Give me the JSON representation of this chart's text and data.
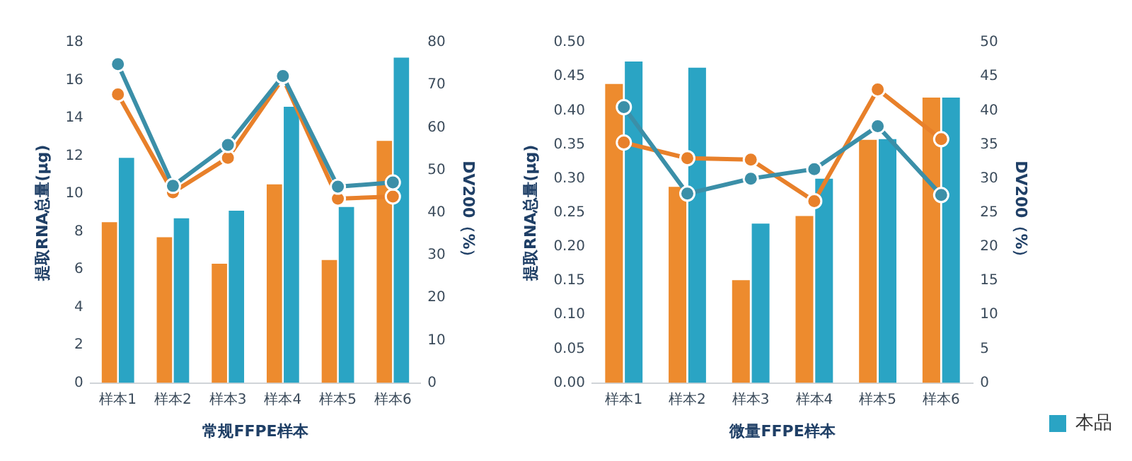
{
  "chart_data": [
    {
      "type": "bar",
      "xlabel": "常规FFPE样本",
      "ylabel": "提取RNA总量(μg)",
      "y2label": "DV200（%）",
      "categories": [
        "样本1",
        "样本2",
        "样本3",
        "样本4",
        "样本5",
        "样本6"
      ],
      "series": [
        {
          "color": "#ed8b2e",
          "values": [
            8.5,
            7.7,
            6.3,
            10.5,
            6.5,
            12.8
          ]
        },
        {
          "color": "#2aa4c4",
          "values": [
            11.9,
            8.7,
            9.1,
            14.6,
            9.3,
            17.2
          ]
        },
        {
          "type": "line",
          "axis": "y2",
          "color": "#e8802a",
          "values": [
            67.8,
            44.8,
            52.9,
            71.6,
            43.3,
            43.8
          ]
        },
        {
          "type": "line",
          "axis": "y2",
          "color": "#3b8fa8",
          "values": [
            74.9,
            46.3,
            55.9,
            72.1,
            46.1,
            47.1
          ]
        }
      ],
      "ylim": [
        0,
        18
      ],
      "yticks": [
        0,
        2,
        4,
        6,
        8,
        10,
        12,
        14,
        16,
        18
      ],
      "y2lim": [
        0,
        80
      ],
      "y2ticks": [
        0,
        10,
        20,
        30,
        40,
        50,
        60,
        70,
        80
      ],
      "marker": "circle",
      "grid": false,
      "legend": false
    },
    {
      "type": "bar",
      "xlabel": "微量FFPE样本",
      "ylabel": "提取RNA总量(μg)",
      "y2label": "DV200（%）",
      "categories": [
        "样本1",
        "样本2",
        "样本3",
        "样本4",
        "样本5",
        "样本6"
      ],
      "series": [
        {
          "color": "#ed8b2e",
          "values": [
            0.439,
            0.288,
            0.151,
            0.245,
            0.357,
            0.419
          ]
        },
        {
          "name": "本品",
          "color": "#2aa4c4",
          "values": [
            0.472,
            0.463,
            0.234,
            0.3,
            0.358,
            0.419
          ]
        },
        {
          "type": "line",
          "axis": "y2",
          "color": "#e8802a",
          "values": [
            35.3,
            33.0,
            32.8,
            26.7,
            43.1,
            35.8
          ]
        },
        {
          "type": "line",
          "axis": "y2",
          "color": "#3b8fa8",
          "values": [
            40.5,
            27.8,
            30.0,
            31.4,
            37.7,
            27.6
          ]
        }
      ],
      "ylim": [
        0,
        0.5
      ],
      "yticks": [
        {
          "value": 0,
          "label": "0.00"
        },
        0.05,
        {
          "value": 0.1,
          "label": "0.10"
        },
        0.15,
        {
          "value": 0.2,
          "label": "0.20"
        },
        0.25,
        {
          "value": 0.3,
          "label": "0.30"
        },
        0.35,
        {
          "value": 0.4,
          "label": "0.40"
        },
        0.45,
        {
          "value": 0.5,
          "label": "0.50"
        }
      ],
      "y2lim": [
        0,
        50
      ],
      "y2ticks": [
        0,
        5,
        10,
        15,
        20,
        25,
        30,
        35,
        40,
        45,
        50
      ],
      "marker": "circle",
      "grid": false,
      "legend": "bottom right"
    }
  ]
}
